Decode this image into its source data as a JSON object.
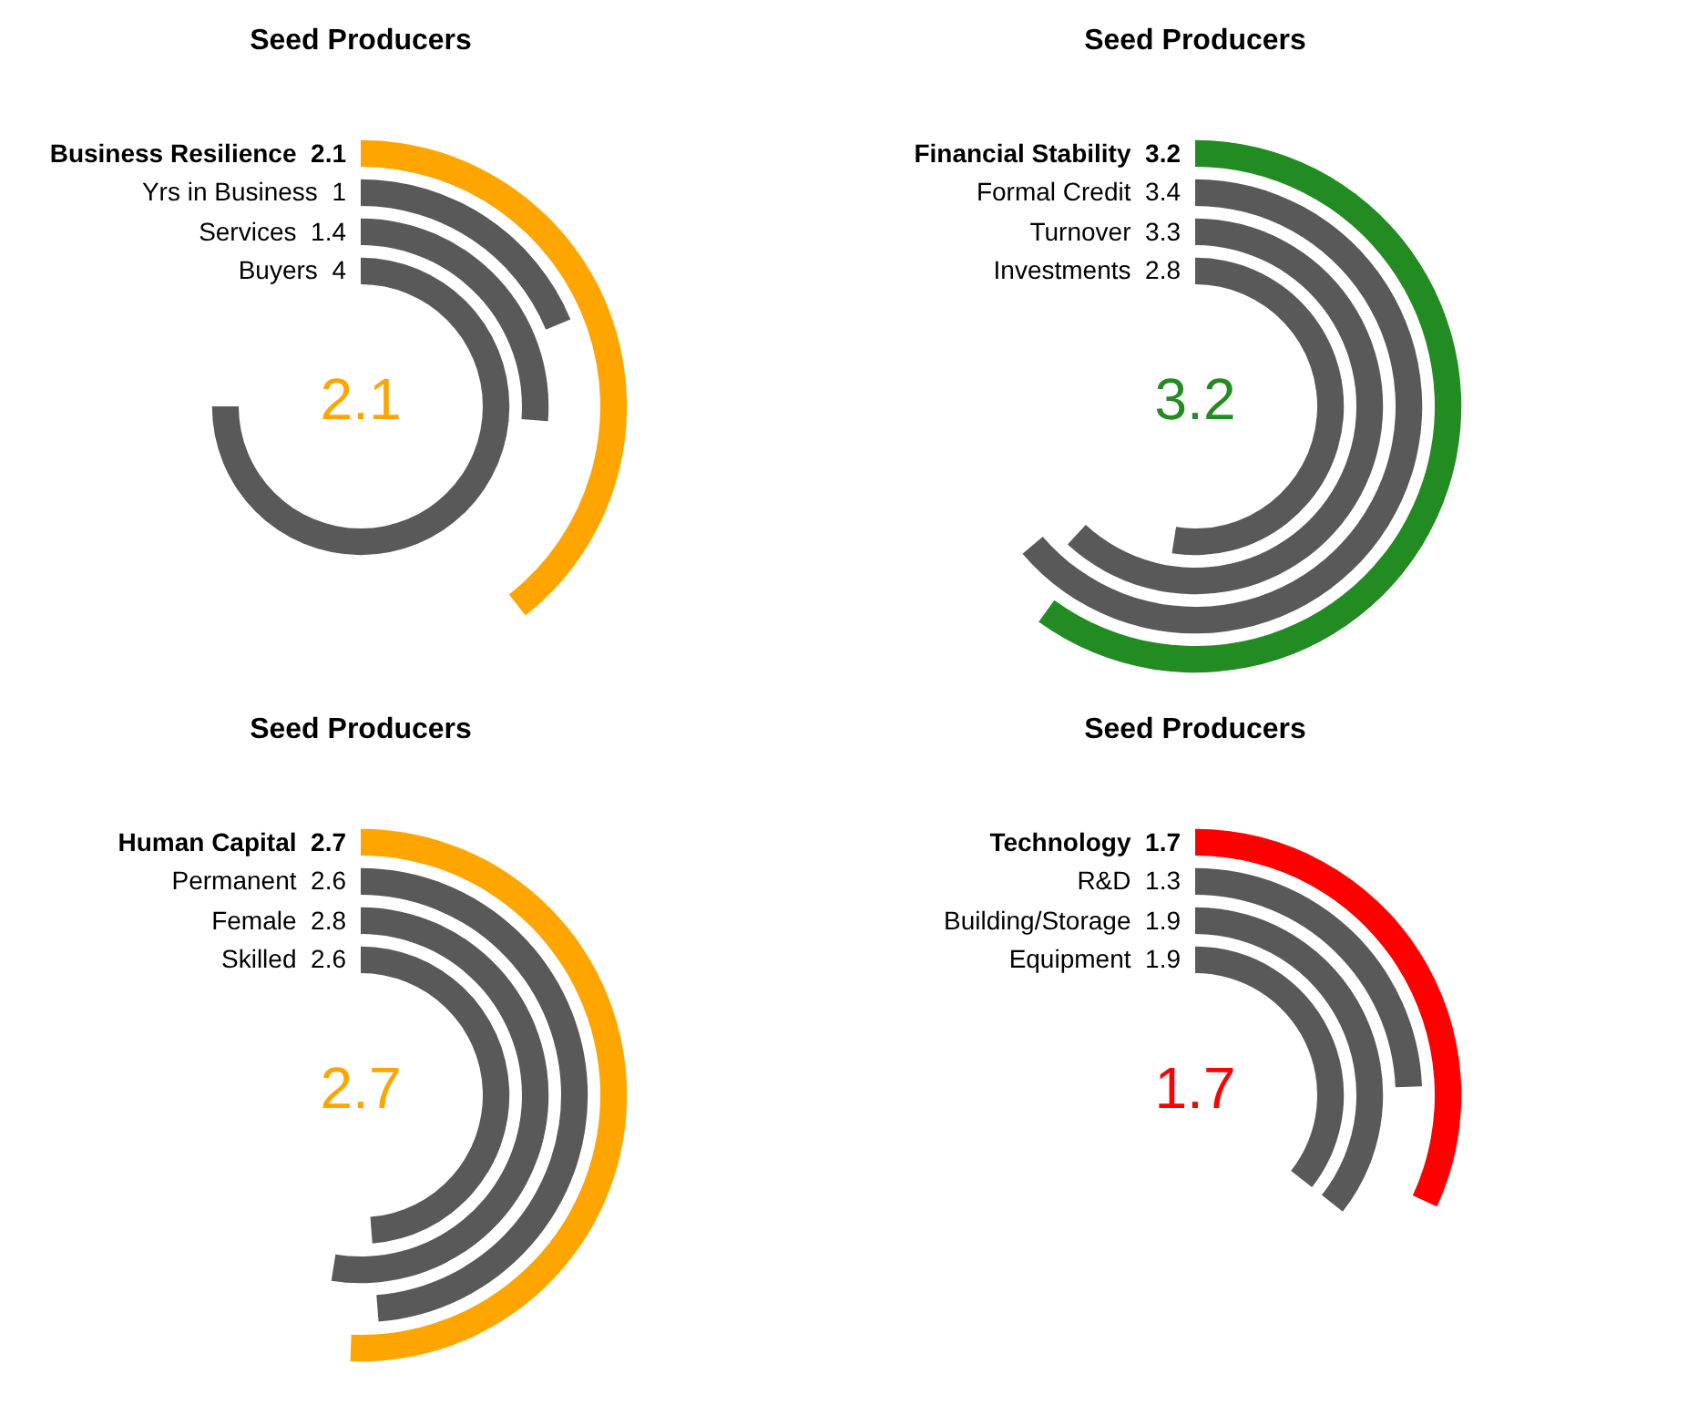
{
  "chart_data": [
    {
      "type": "other",
      "title": "Seed Producers",
      "categories": [
        "Business Resilience",
        "Yrs in Business",
        "Services",
        "Buyers"
      ],
      "values": [
        2.1,
        1,
        1.4,
        4
      ],
      "colors": [
        "#ffa500",
        "#595959",
        "#595959",
        "#595959"
      ],
      "data_labels": true,
      "annotations": [
        "2.1"
      ]
    },
    {
      "type": "other",
      "title": "Seed Producers",
      "categories": [
        "Financial Stability",
        "Formal Credit",
        "Turnover",
        "Investments"
      ],
      "values": [
        3.2,
        3.4,
        3.3,
        2.8
      ],
      "colors": [
        "#228b22",
        "#595959",
        "#595959",
        "#595959"
      ],
      "data_labels": true,
      "annotations": [
        "3.2"
      ]
    },
    {
      "type": "other",
      "title": "Seed Producers",
      "categories": [
        "Human Capital",
        "Permanent",
        "Female",
        "Skilled"
      ],
      "values": [
        2.7,
        2.6,
        2.8,
        2.6
      ],
      "colors": [
        "#ffa500",
        "#595959",
        "#595959",
        "#595959"
      ],
      "data_labels": true,
      "annotations": [
        "2.7"
      ]
    },
    {
      "type": "other",
      "title": "Seed Producers",
      "categories": [
        "Technology",
        "R&D",
        "Building/Storage",
        "Equipment"
      ],
      "values": [
        1.7,
        1.3,
        1.9,
        1.9
      ],
      "colors": [
        "#ff0000",
        "#595959",
        "#595959",
        "#595959"
      ],
      "data_labels": true,
      "annotations": [
        "1.7"
      ]
    }
  ]
}
